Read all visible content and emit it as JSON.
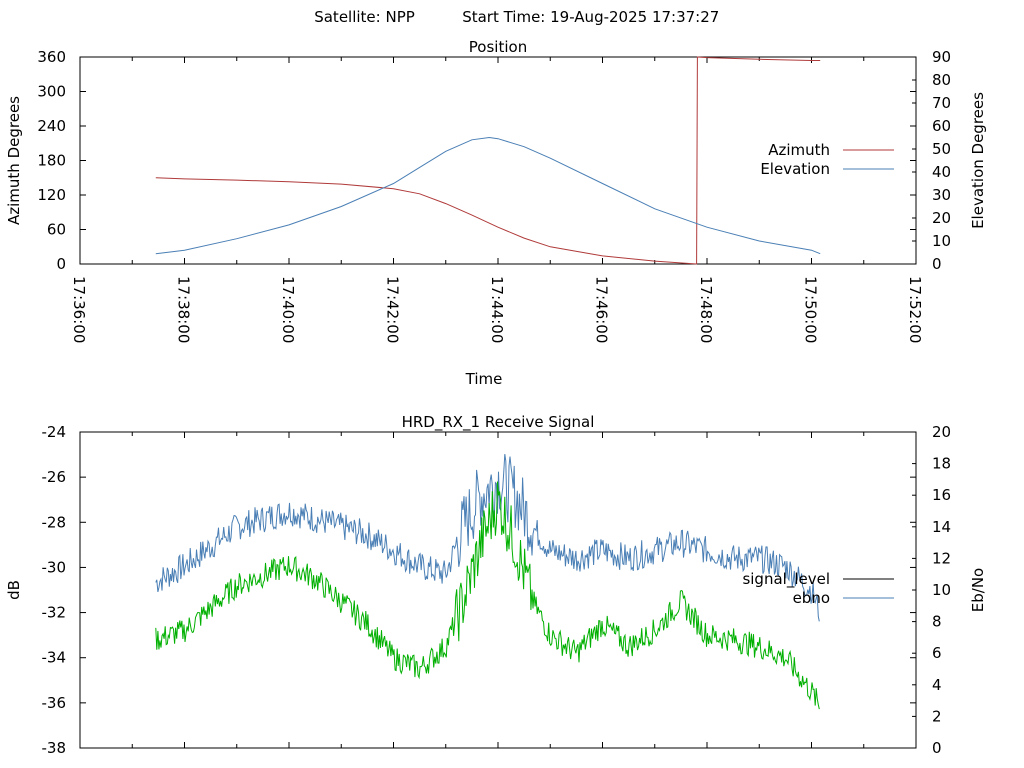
{
  "header": {
    "satellite_label": "Satellite: NPP",
    "start_time_label": "Start Time: 19-Aug-2025 17:37:27"
  },
  "chart_data": [
    {
      "type": "line",
      "title": "Position",
      "xlabel": "Time",
      "ylabel": "Azimuth Degrees",
      "y2label": "Elevation Degrees",
      "x_ticks": [
        "17:36:00",
        "17:38:00",
        "17:40:00",
        "17:42:00",
        "17:44:00",
        "17:46:00",
        "17:48:00",
        "17:50:00",
        "17:52:00"
      ],
      "xlim": [
        "17:36:00",
        "17:52:00"
      ],
      "ylim": [
        0,
        360
      ],
      "y_ticks": [
        "0",
        "60",
        "120",
        "180",
        "240",
        "300",
        "360"
      ],
      "y2lim": [
        0,
        90
      ],
      "y2_ticks": [
        "0",
        "10",
        "20",
        "30",
        "40",
        "50",
        "60",
        "70",
        "80",
        "90"
      ],
      "legend_position": "right",
      "grid": false,
      "series": [
        {
          "name": "Azimuth",
          "axis": "left",
          "color": "#b03a3a",
          "x": [
            "17:37:27",
            "17:38:00",
            "17:39:00",
            "17:40:00",
            "17:41:00",
            "17:42:00",
            "17:42:30",
            "17:43:00",
            "17:43:30",
            "17:44:00",
            "17:44:30",
            "17:45:00",
            "17:46:00",
            "17:47:00",
            "17:47:48",
            "17:47:49",
            "17:48:00",
            "17:49:00",
            "17:50:00",
            "17:50:10"
          ],
          "values": [
            150,
            148,
            146,
            143,
            139,
            131,
            122,
            105,
            85,
            64,
            45,
            30,
            14,
            5,
            0,
            360,
            359,
            356,
            354,
            354
          ]
        },
        {
          "name": "Elevation",
          "axis": "right",
          "color": "#4a7fb5",
          "x": [
            "17:37:27",
            "17:38:00",
            "17:39:00",
            "17:40:00",
            "17:41:00",
            "17:42:00",
            "17:42:30",
            "17:43:00",
            "17:43:30",
            "17:43:50",
            "17:44:00",
            "17:44:30",
            "17:45:00",
            "17:46:00",
            "17:47:00",
            "17:48:00",
            "17:49:00",
            "17:50:00",
            "17:50:10"
          ],
          "values": [
            4.5,
            6,
            11,
            17,
            25,
            35,
            42,
            49,
            54,
            55,
            54.5,
            51,
            46,
            35,
            24,
            16,
            10,
            6,
            4.5
          ]
        }
      ]
    },
    {
      "type": "line",
      "title": "HRD_RX_1 Receive Signal",
      "ylabel": "dB",
      "y2label": "Eb/No",
      "xlim": [
        "17:36:00",
        "17:52:00"
      ],
      "ylim": [
        -38,
        -24
      ],
      "y_ticks": [
        "-38",
        "-36",
        "-34",
        "-32",
        "-30",
        "-28",
        "-26",
        "-24"
      ],
      "y2lim": [
        0,
        20
      ],
      "y2_ticks": [
        "0",
        "2",
        "4",
        "6",
        "8",
        "10",
        "12",
        "14",
        "16",
        "18",
        "20"
      ],
      "legend_position": "right",
      "grid": false,
      "series": [
        {
          "name": "signal_level",
          "axis": "left",
          "color": "#000000",
          "x": [],
          "values": []
        },
        {
          "name": "ebno",
          "axis": "right",
          "color": "#4a7fb5",
          "x": [
            "17:37:27",
            "17:38:00",
            "17:39:00",
            "17:40:00",
            "17:40:30",
            "17:41:00",
            "17:41:30",
            "17:42:00",
            "17:42:30",
            "17:43:00",
            "17:43:20",
            "17:43:40",
            "17:44:00",
            "17:44:20",
            "17:44:40",
            "17:45:00",
            "17:45:30",
            "17:46:00",
            "17:46:30",
            "17:47:00",
            "17:47:30",
            "17:48:00",
            "17:48:30",
            "17:49:00",
            "17:49:30",
            "17:50:00",
            "17:50:10"
          ],
          "values": [
            10.5,
            11.5,
            14,
            15,
            14.5,
            14,
            13.5,
            12.5,
            11.5,
            11,
            14,
            16,
            17,
            16,
            14,
            12.5,
            12,
            12.5,
            12,
            12.5,
            13,
            12.5,
            12,
            12,
            11.5,
            10,
            8.5
          ]
        },
        {
          "name": "",
          "axis": "left",
          "color": "#00b000",
          "x": [
            "17:37:27",
            "17:38:00",
            "17:39:00",
            "17:40:00",
            "17:40:30",
            "17:41:00",
            "17:41:30",
            "17:42:00",
            "17:42:30",
            "17:43:00",
            "17:43:20",
            "17:43:40",
            "17:44:00",
            "17:44:20",
            "17:44:40",
            "17:45:00",
            "17:45:30",
            "17:46:00",
            "17:46:30",
            "17:47:00",
            "17:47:30",
            "17:48:00",
            "17:48:30",
            "17:49:00",
            "17:49:30",
            "17:50:00",
            "17:50:10"
          ],
          "values": [
            -33.2,
            -32.8,
            -30.8,
            -29.9,
            -30.5,
            -31.5,
            -32.5,
            -34,
            -34.5,
            -33.5,
            -31.5,
            -29,
            -27,
            -29,
            -31.5,
            -33,
            -33.8,
            -32.5,
            -33.5,
            -32.8,
            -31.5,
            -33,
            -33.2,
            -33.5,
            -34,
            -35.5,
            -36.2
          ]
        }
      ]
    }
  ]
}
